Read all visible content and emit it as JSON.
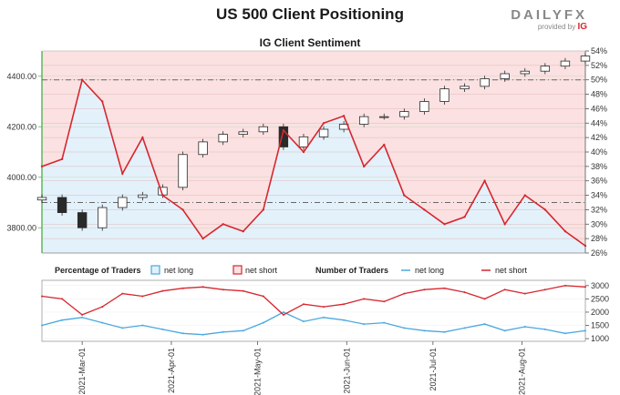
{
  "header": {
    "title": "US 500 Client Positioning",
    "subtitle": "IG Client Sentiment",
    "logo_brand": "DAILYFX",
    "logo_provided": "provided by",
    "logo_ig": "IG"
  },
  "legend": {
    "pct_heading": "Percentage of Traders",
    "pct_long": "net long",
    "pct_short": "net short",
    "num_heading": "Number of Traders",
    "num_long": "net long",
    "num_short": "net short"
  },
  "colors": {
    "long": "#4aa8e0",
    "short": "#d7262e",
    "long_fill": "#e3f1fb",
    "short_fill": "#fbe1e1",
    "candle": "#2a2a2a",
    "axis_price": "#5cb85c"
  },
  "chart_data": [
    {
      "type": "candlestick",
      "title": "IG Client Sentiment",
      "x_dates": [
        "2021-02-15",
        "2021-02-22",
        "2021-03-01",
        "2021-03-08",
        "2021-03-15",
        "2021-03-22",
        "2021-03-29",
        "2021-04-05",
        "2021-04-12",
        "2021-04-19",
        "2021-04-26",
        "2021-05-03",
        "2021-05-10",
        "2021-05-17",
        "2021-05-24",
        "2021-05-31",
        "2021-06-07",
        "2021-06-14",
        "2021-06-21",
        "2021-06-28",
        "2021-07-05",
        "2021-07-12",
        "2021-07-19",
        "2021-07-26",
        "2021-08-02",
        "2021-08-09",
        "2021-08-16",
        "2021-08-23"
      ],
      "price_axis": {
        "ticks": [
          3800,
          4000,
          4200,
          4400
        ],
        "tick_labels": [
          "3800.00",
          "4000.00",
          "4200.00",
          "4400.00"
        ],
        "range": [
          3700,
          4500
        ]
      },
      "percent_axis": {
        "ticks": [
          26,
          28,
          30,
          32,
          34,
          36,
          38,
          40,
          42,
          44,
          46,
          48,
          50,
          52,
          54
        ],
        "tick_labels": [
          "26%",
          "28%",
          "30%",
          "32%",
          "34%",
          "36%",
          "38%",
          "40%",
          "42%",
          "44%",
          "46%",
          "48%",
          "50%",
          "52%",
          "54%"
        ],
        "range": [
          26,
          54
        ]
      },
      "price_close": [
        3920,
        3860,
        3800,
        3880,
        3920,
        3930,
        3960,
        4090,
        4140,
        4170,
        4180,
        4200,
        4120,
        4160,
        4190,
        4210,
        4240,
        4240,
        4260,
        4300,
        4350,
        4360,
        4390,
        4410,
        4420,
        4440,
        4460,
        4480
      ],
      "reference_levels_percent": [
        50,
        33
      ],
      "series": [
        {
          "name": "net short",
          "values": [
            38,
            39,
            50,
            47,
            37,
            42,
            34,
            32,
            28,
            30,
            29,
            32,
            43,
            40,
            44,
            45,
            38,
            41,
            34,
            32,
            30,
            31,
            36,
            30,
            34,
            32,
            29,
            27
          ]
        },
        {
          "name": "net long",
          "values": [
            62,
            61,
            50,
            53,
            63,
            58,
            66,
            68,
            72,
            70,
            71,
            68,
            57,
            60,
            56,
            55,
            62,
            59,
            66,
            68,
            70,
            69,
            64,
            70,
            66,
            68,
            71,
            73
          ]
        }
      ]
    },
    {
      "type": "line",
      "title": "Number of Traders",
      "x_dates": [
        "2021-02-15",
        "2021-02-22",
        "2021-03-01",
        "2021-03-08",
        "2021-03-15",
        "2021-03-22",
        "2021-03-29",
        "2021-04-05",
        "2021-04-12",
        "2021-04-19",
        "2021-04-26",
        "2021-05-03",
        "2021-05-10",
        "2021-05-17",
        "2021-05-24",
        "2021-05-31",
        "2021-06-07",
        "2021-06-14",
        "2021-06-21",
        "2021-06-28",
        "2021-07-05",
        "2021-07-12",
        "2021-07-19",
        "2021-07-26",
        "2021-08-02",
        "2021-08-09",
        "2021-08-16",
        "2021-08-23"
      ],
      "x_tick_labels": [
        "2021-Mar-01",
        "2021-Apr-01",
        "2021-May-01",
        "2021-Jun-01",
        "2021-Jul-01",
        "2021-Aug-01"
      ],
      "y_axis": {
        "ticks": [
          1000,
          1500,
          2000,
          2500,
          3000
        ],
        "tick_labels": [
          "1000",
          "1500",
          "2000",
          "2500",
          "3000"
        ],
        "range": [
          900,
          3200
        ]
      },
      "series": [
        {
          "name": "net long",
          "values": [
            1500,
            1700,
            1800,
            1600,
            1400,
            1500,
            1350,
            1200,
            1150,
            1250,
            1300,
            1600,
            2000,
            1650,
            1800,
            1700,
            1550,
            1600,
            1400,
            1300,
            1250,
            1400,
            1550,
            1300,
            1450,
            1350,
            1200,
            1300
          ]
        },
        {
          "name": "net short",
          "values": [
            2600,
            2500,
            1900,
            2200,
            2700,
            2600,
            2800,
            2900,
            2950,
            2850,
            2800,
            2600,
            1900,
            2300,
            2200,
            2300,
            2500,
            2400,
            2700,
            2850,
            2900,
            2750,
            2500,
            2850,
            2700,
            2850,
            3000,
            2950
          ]
        }
      ]
    }
  ]
}
